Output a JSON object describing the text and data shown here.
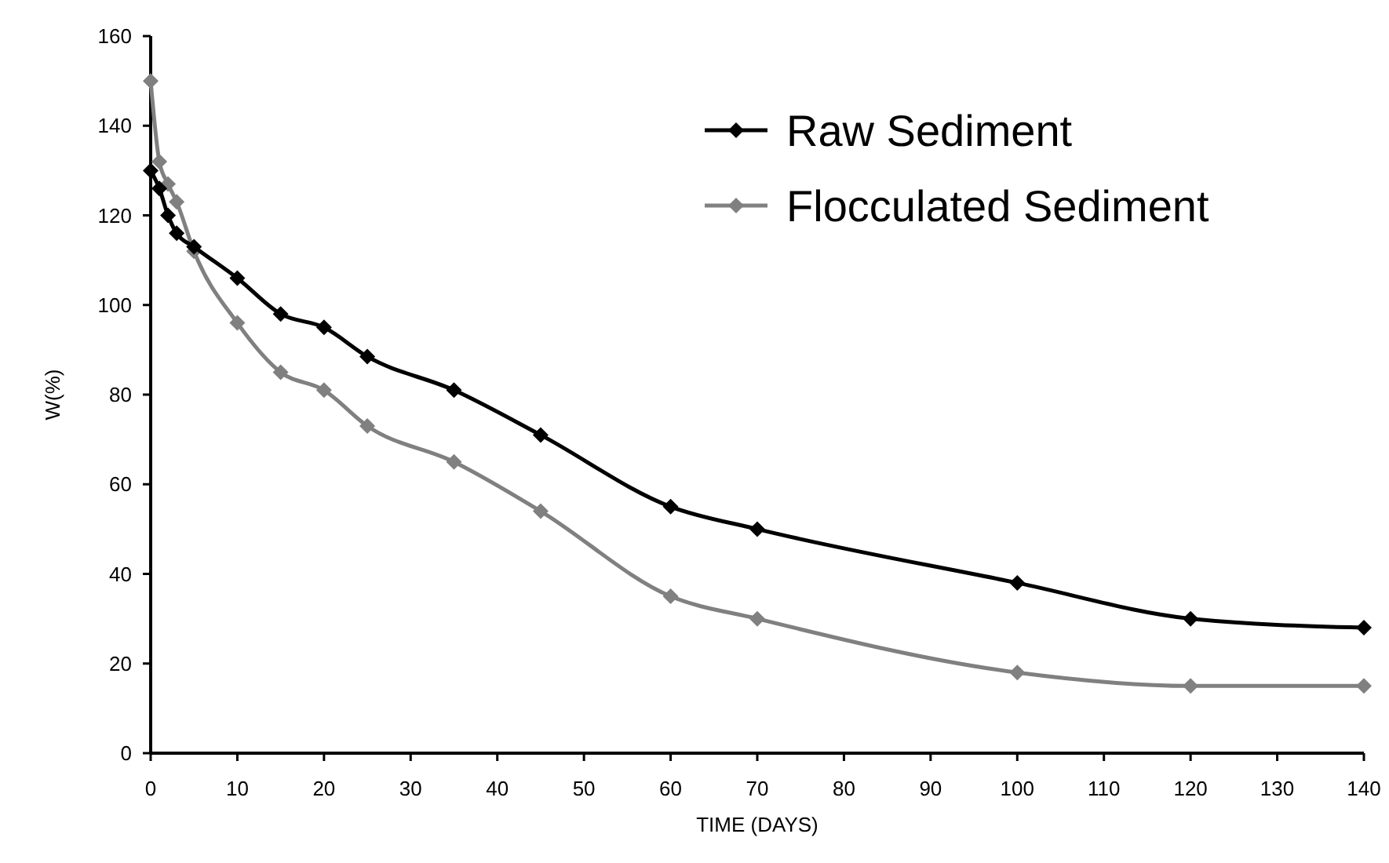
{
  "chart_data": {
    "type": "line",
    "xlabel": "TIME (DAYS)",
    "ylabel": "W(%)",
    "xlim": [
      0,
      140
    ],
    "xticks": [
      0,
      10,
      20,
      30,
      40,
      50,
      60,
      70,
      80,
      90,
      100,
      110,
      120,
      130,
      140
    ],
    "ylim": [
      0,
      160
    ],
    "yticks": [
      0,
      20,
      40,
      60,
      80,
      100,
      120,
      140,
      160
    ],
    "grid": false,
    "legend": "top right",
    "marker": "diamond",
    "line_style": "solid",
    "series": [
      {
        "name": "Raw Sediment",
        "color": "#000000",
        "x": [
          0,
          1,
          2,
          3,
          5,
          10,
          15,
          20,
          25,
          35,
          45,
          60,
          70,
          100,
          120,
          140
        ],
        "values": [
          130,
          126,
          120,
          116,
          113,
          106,
          98,
          95,
          88.5,
          81,
          71,
          55,
          50,
          38,
          30,
          28
        ]
      },
      {
        "name": "Flocculated Sediment",
        "color": "#808080",
        "x": [
          0,
          1,
          2,
          3,
          5,
          10,
          15,
          20,
          25,
          35,
          45,
          60,
          70,
          100,
          120,
          140
        ],
        "values": [
          150,
          132,
          127,
          123,
          112,
          96,
          85,
          81,
          73,
          65,
          54,
          35,
          30,
          18,
          15,
          15
        ]
      }
    ]
  }
}
